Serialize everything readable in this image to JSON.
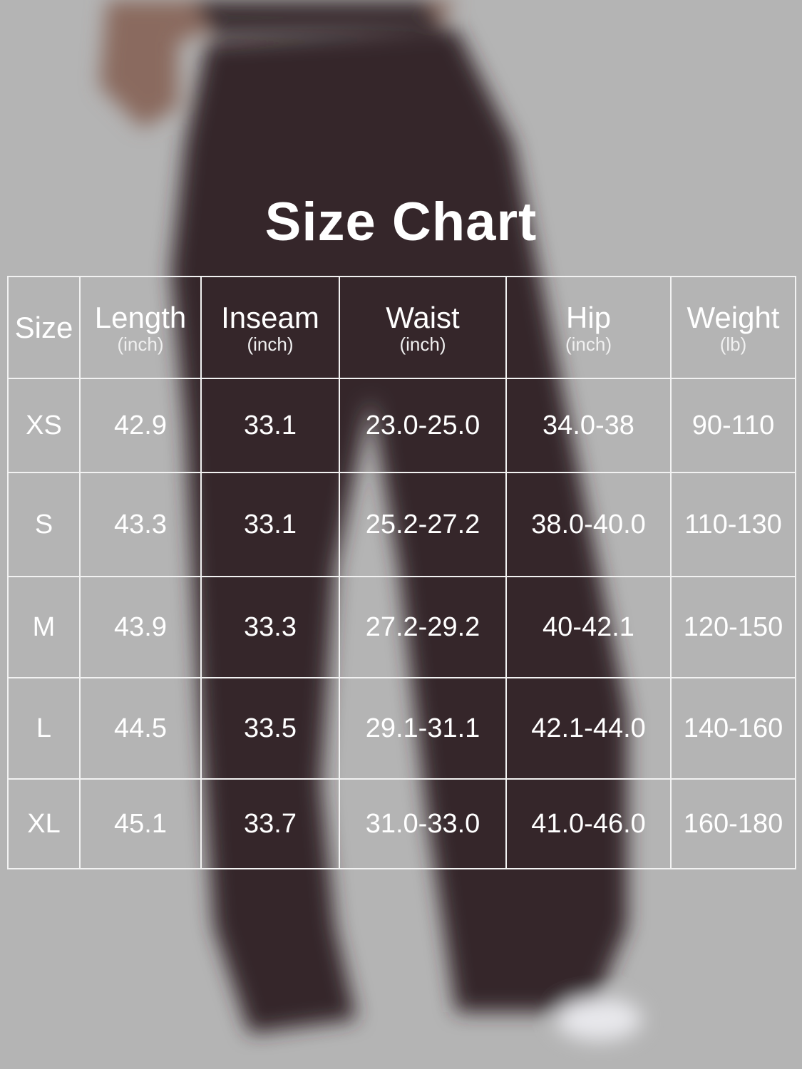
{
  "title": "Size Chart",
  "colors": {
    "background": "#b4b4b4",
    "garment": "#34262c",
    "text": "#ffffff",
    "grid": "#f2f2f2"
  },
  "table": {
    "headers": [
      {
        "label": "Size",
        "unit": ""
      },
      {
        "label": "Length",
        "unit": "(inch)"
      },
      {
        "label": "Inseam",
        "unit": "(inch)"
      },
      {
        "label": "Waist",
        "unit": "(inch)"
      },
      {
        "label": "Hip",
        "unit": "(inch)"
      },
      {
        "label": "Weight",
        "unit": "(lb)"
      }
    ],
    "rows": [
      [
        "XS",
        "42.9",
        "33.1",
        "23.0-25.0",
        "34.0-38",
        "90-110"
      ],
      [
        "S",
        "43.3",
        "33.1",
        "25.2-27.2",
        "38.0-40.0",
        "110-130"
      ],
      [
        "M",
        "43.9",
        "33.3",
        "27.2-29.2",
        "40-42.1",
        "120-150"
      ],
      [
        "L",
        "44.5",
        "33.5",
        "29.1-31.1",
        "42.1-44.0",
        "140-160"
      ],
      [
        "XL",
        "45.1",
        "33.7",
        "31.0-33.0",
        "41.0-46.0",
        "160-180"
      ]
    ]
  }
}
